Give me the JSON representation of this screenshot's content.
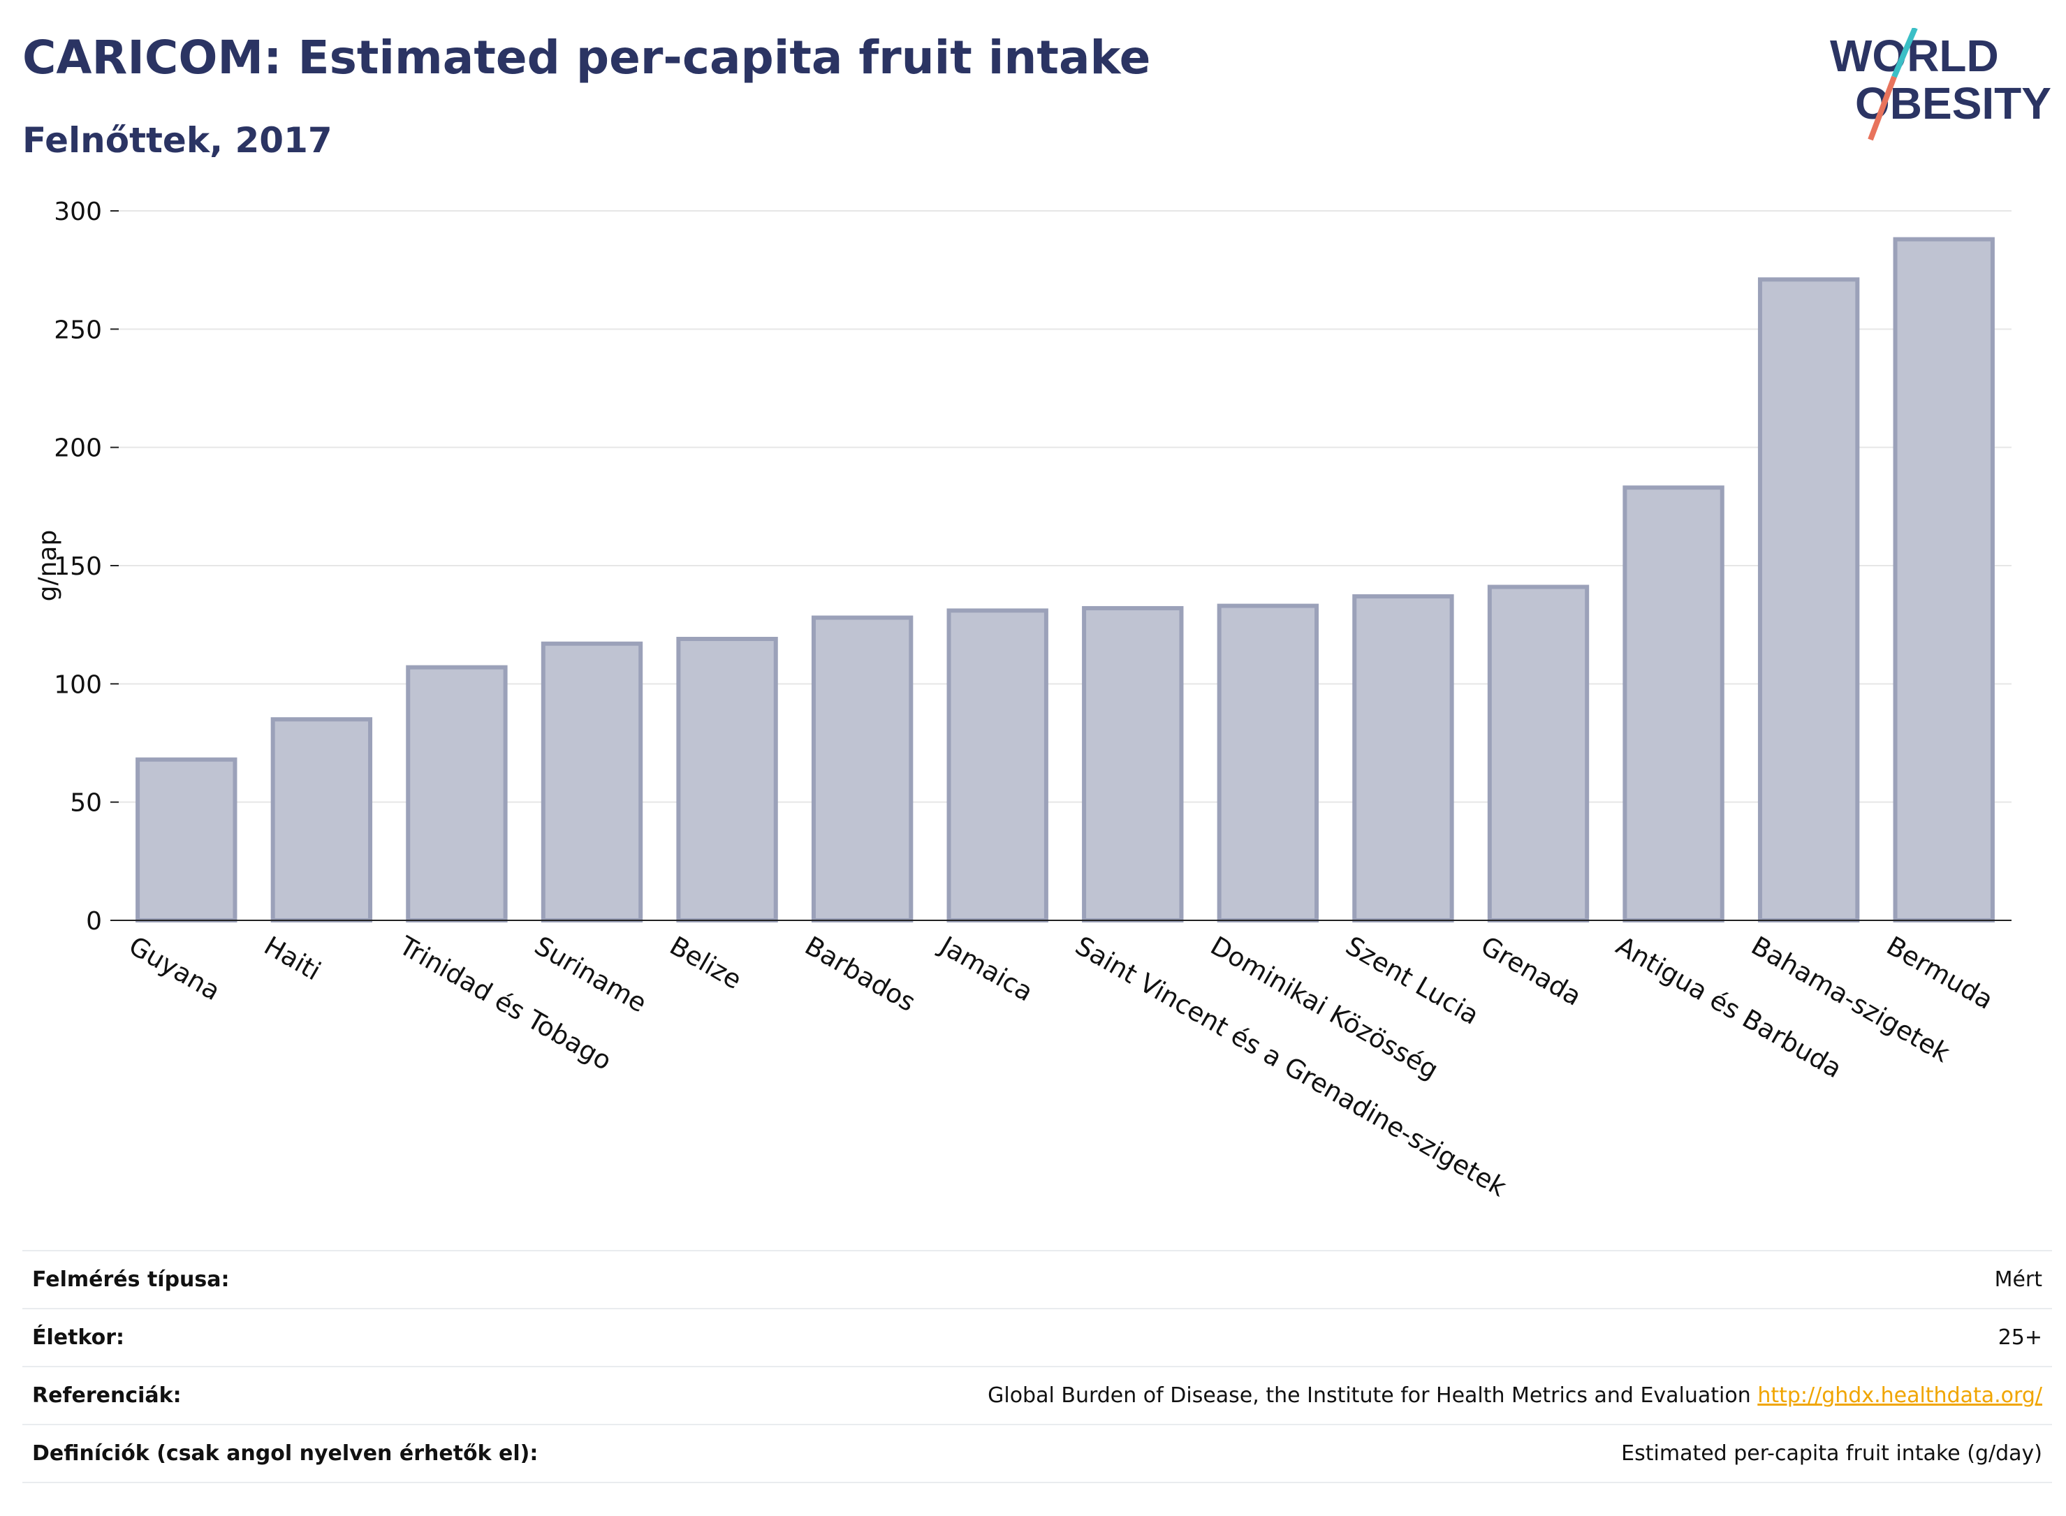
{
  "title": "CARICOM: Estimated per-capita fruit intake",
  "subtitle": "Felnőttek, 2017",
  "logo": {
    "line1": "WORLD",
    "line2": "OBESITY",
    "accent_teal": "#3bbfc6",
    "accent_coral": "#e8735c",
    "color": "#2b3463"
  },
  "chart_data": {
    "type": "bar",
    "title": "CARICOM: Estimated per-capita fruit intake",
    "subtitle": "Felnőttek, 2017",
    "xlabel": "",
    "ylabel": "g/nap",
    "ylim": [
      0,
      300
    ],
    "yticks": [
      0,
      50,
      100,
      150,
      200,
      250,
      300
    ],
    "grid": true,
    "bar_fill": "#bfc3d2",
    "bar_stroke": "#9ba1b9",
    "categories": [
      "Guyana",
      "Haiti",
      "Trinidad és Tobago",
      "Suriname",
      "Belize",
      "Barbados",
      "Jamaica",
      "Saint Vincent és a Grenadine-szigetek",
      "Dominikai Közösség",
      "Szent Lucia",
      "Grenada",
      "Antigua és Barbuda",
      "Bahama-szigetek",
      "Bermuda"
    ],
    "values": [
      68,
      85,
      107,
      117,
      119,
      128,
      131,
      132,
      133,
      137,
      141,
      183,
      271,
      288
    ]
  },
  "info": [
    {
      "label": "Felmérés típusa:",
      "value": "Mért"
    },
    {
      "label": "Életkor:",
      "value": "25+"
    },
    {
      "label": "Referenciák:",
      "value": "Global Burden of Disease, the Institute for Health Metrics and Evaluation",
      "link": "http://ghdx.healthdata.org/"
    },
    {
      "label": "Definíciók (csak angol nyelven érhetők el):",
      "value": "Estimated per-capita fruit intake (g/day)"
    }
  ]
}
